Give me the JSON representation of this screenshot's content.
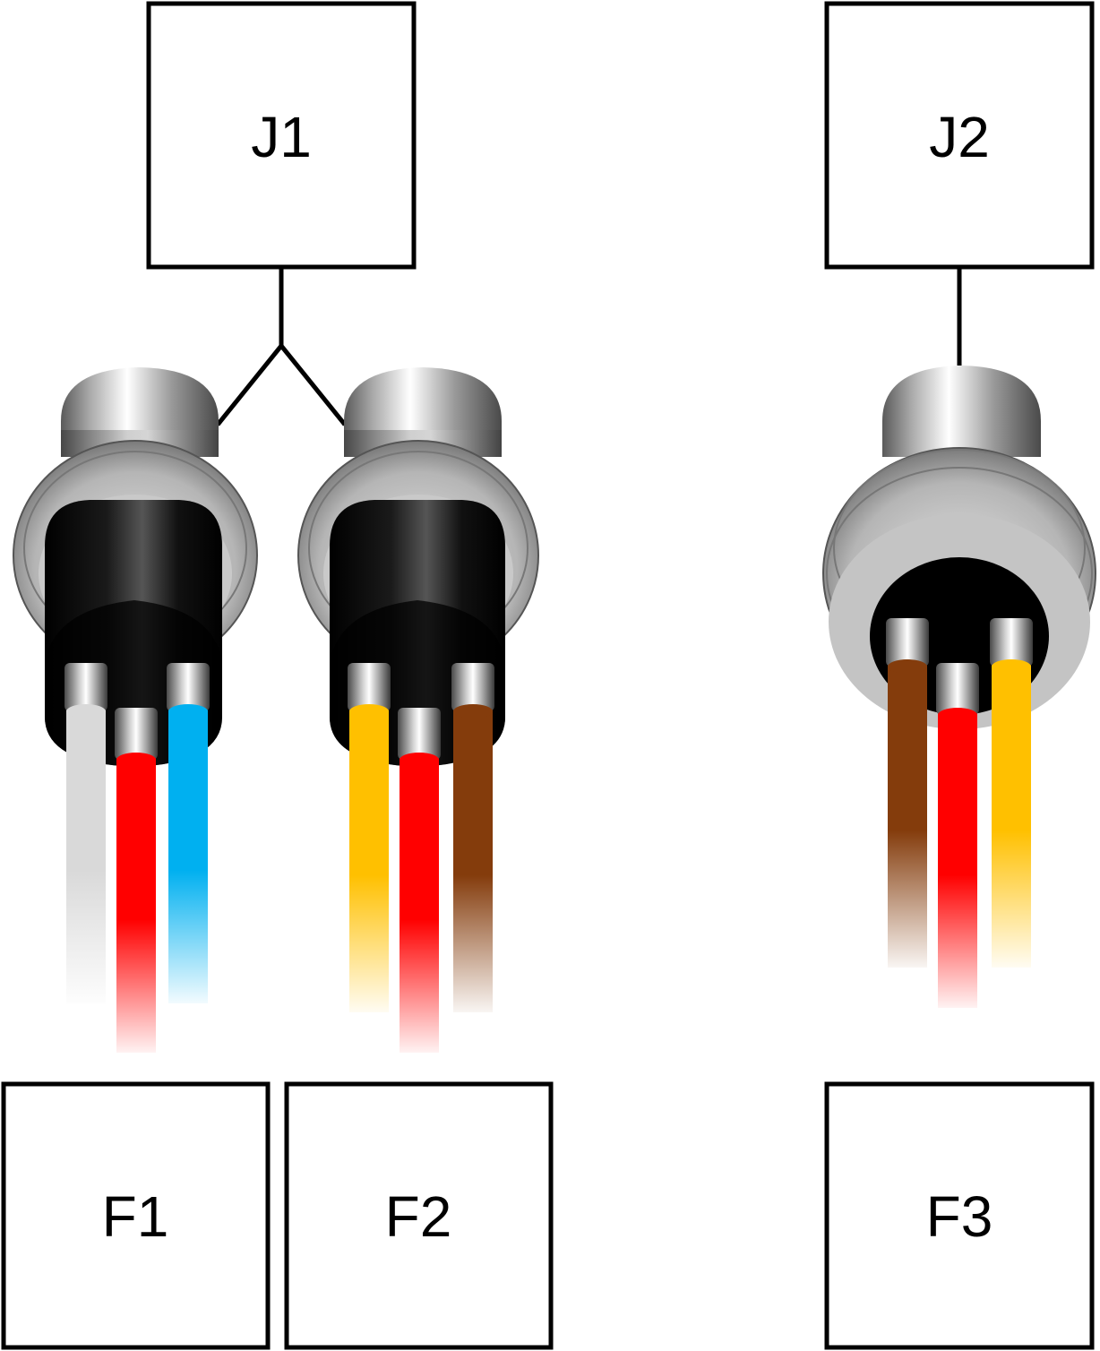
{
  "boxes": {
    "j1": "J1",
    "j2": "J2",
    "f1": "F1",
    "f2": "F2",
    "f3": "F3"
  },
  "connectors": [
    {
      "name": "connector-1",
      "wires": [
        "white",
        "red",
        "blue"
      ]
    },
    {
      "name": "connector-2",
      "wires": [
        "yellow",
        "red",
        "brown"
      ]
    },
    {
      "name": "connector-3",
      "wires": [
        "brown",
        "red",
        "yellow"
      ]
    }
  ],
  "colors": {
    "white": "#d9d9d9",
    "red": "#ff0000",
    "blue": "#00b0f0",
    "yellow": "#ffc000",
    "brown": "#843c0c",
    "outline": "#000000"
  }
}
